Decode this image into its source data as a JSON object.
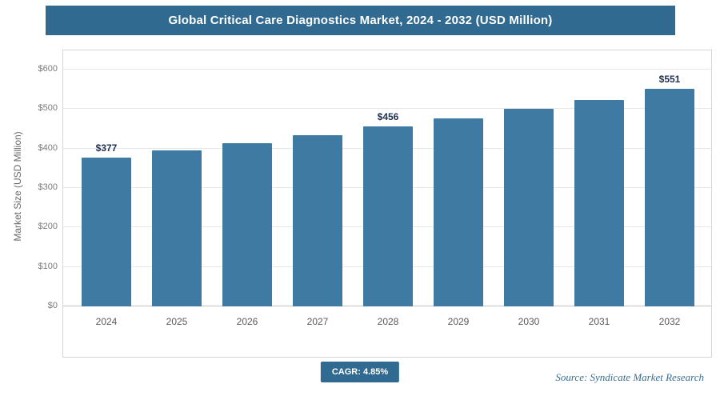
{
  "header": {
    "title": "Global Critical Care Diagnostics Market, 2024 - 2032 (USD Million)"
  },
  "chart_data": {
    "type": "bar",
    "title": "Global Critical Care Diagnostics Market, 2024 - 2032 (USD Million)",
    "categories": [
      "2024",
      "2025",
      "2026",
      "2027",
      "2028",
      "2029",
      "2030",
      "2031",
      "2032"
    ],
    "values": [
      377,
      395,
      414,
      433,
      456,
      477,
      500,
      523,
      551
    ],
    "bar_labels": [
      "$377",
      "",
      "",
      "",
      "$456",
      "",
      "",
      "",
      "$551"
    ],
    "xlabel": "",
    "ylabel": "Market Size (USD Million)",
    "ylim": [
      0,
      600
    ],
    "ytick_step": 100,
    "ytick_labels": [
      "$0",
      "$100",
      "$200",
      "$300",
      "$400",
      "$500",
      "$600"
    ],
    "grid": true,
    "legend": false,
    "bar_color": "#3e7aa1"
  },
  "footer": {
    "cagr_label": "CAGR: 4.85%",
    "source": "Source: Syndicate Market Research"
  },
  "colors": {
    "header_bg": "#306a90",
    "bar": "#3e7aa1",
    "badge_bg": "#306a90",
    "data_label": "#1f2f50",
    "source_text": "#3a6e8f"
  }
}
